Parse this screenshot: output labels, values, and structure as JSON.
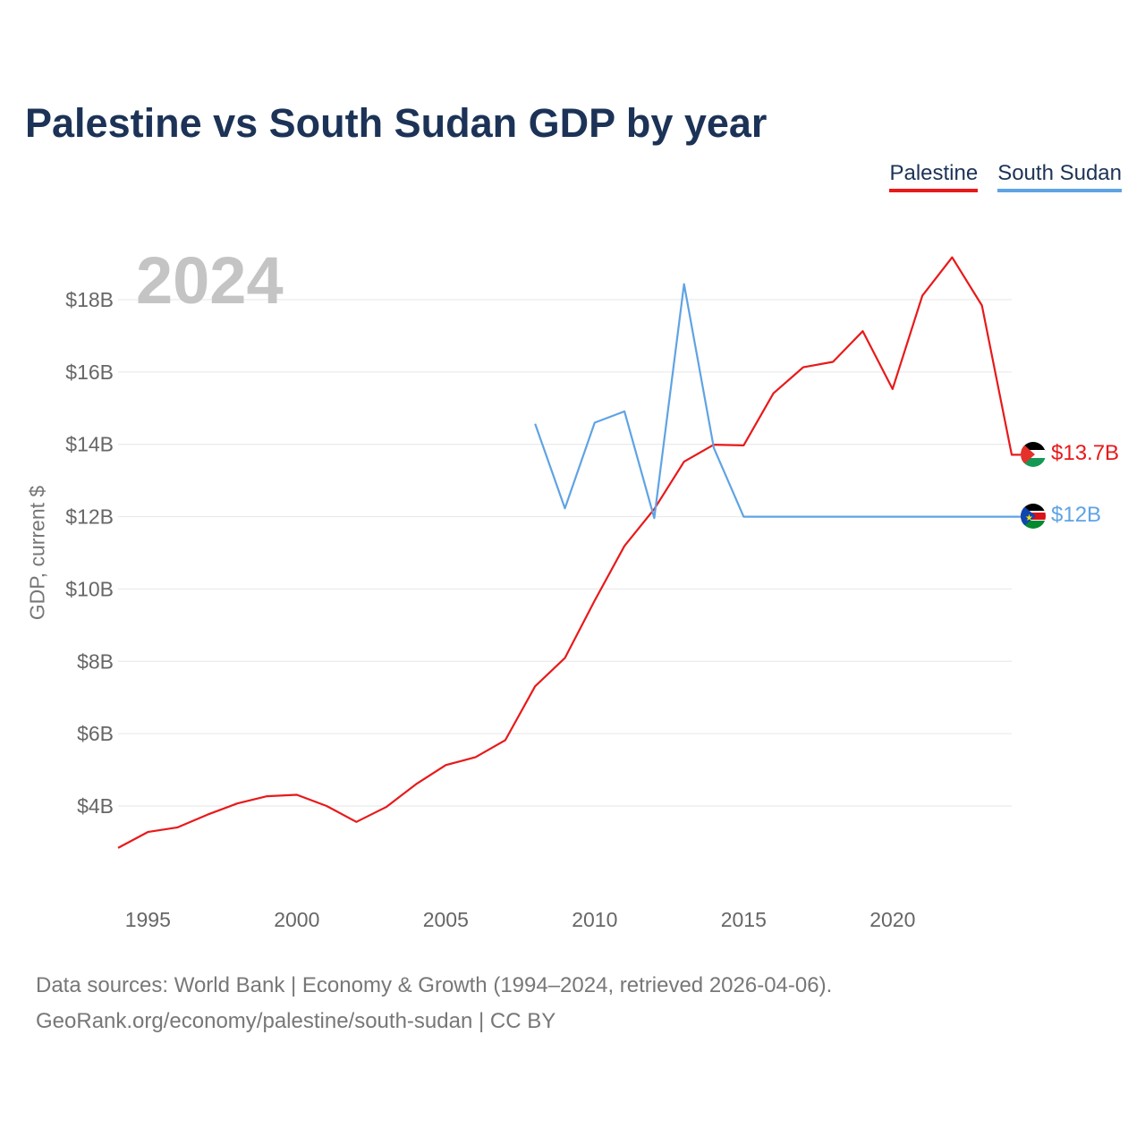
{
  "title": "Palestine vs South Sudan GDP by year",
  "legend": [
    {
      "label": "Palestine",
      "color": "#e8191a"
    },
    {
      "label": "South Sudan",
      "color": "#5fa3e4"
    }
  ],
  "year_label": "2024",
  "footer": {
    "line1": "Data sources: World Bank | Economy & Growth (1994–2024, retrieved 2026-04-06).",
    "line2": "GeoRank.org/economy/palestine/south-sudan | CC BY"
  },
  "chart_data": {
    "type": "line",
    "title": "Palestine vs South Sudan GDP by year",
    "xlabel": "",
    "ylabel": "GDP, current $",
    "xlim": [
      1994,
      2024
    ],
    "ylim": [
      2,
      20
    ],
    "y_ticks": [
      4,
      6,
      8,
      10,
      12,
      14,
      16,
      18
    ],
    "y_tick_labels": [
      "$4B",
      "$6B",
      "$8B",
      "$10B",
      "$12B",
      "$14B",
      "$16B",
      "$18B"
    ],
    "x_ticks": [
      1995,
      2000,
      2005,
      2010,
      2015,
      2020
    ],
    "x_tick_labels": [
      "1995",
      "2000",
      "2005",
      "2010",
      "2015",
      "2020"
    ],
    "grid": true,
    "units": "billion current US$",
    "series": [
      {
        "name": "Palestine",
        "color": "#e8191a",
        "flag": "palestine",
        "end_label": "$13.7B",
        "x": [
          1994,
          1995,
          1996,
          1997,
          1998,
          1999,
          2000,
          2001,
          2002,
          2003,
          2004,
          2005,
          2006,
          2007,
          2008,
          2009,
          2010,
          2011,
          2012,
          2013,
          2014,
          2015,
          2016,
          2017,
          2018,
          2019,
          2020,
          2021,
          2022,
          2023,
          2024
        ],
        "values": [
          2.84,
          3.28,
          3.41,
          3.76,
          4.07,
          4.27,
          4.31,
          4.0,
          3.56,
          3.97,
          4.6,
          5.13,
          5.35,
          5.82,
          7.31,
          8.09,
          9.68,
          11.19,
          12.21,
          13.52,
          13.99,
          13.97,
          15.41,
          16.13,
          16.28,
          17.13,
          15.53,
          18.11,
          19.17,
          17.84,
          13.71
        ]
      },
      {
        "name": "South Sudan",
        "color": "#5fa3e4",
        "flag": "south-sudan",
        "end_label": "$12B",
        "x": [
          2008,
          2009,
          2010,
          2011,
          2012,
          2013,
          2014,
          2015,
          2016,
          2017,
          2018,
          2019,
          2020,
          2021,
          2022,
          2023,
          2024
        ],
        "values": [
          14.57,
          12.23,
          14.6,
          14.91,
          11.96,
          18.43,
          13.9,
          12.0,
          12.0,
          12.0,
          12.0,
          12.0,
          12.0,
          12.0,
          12.0,
          12.0,
          12.0
        ]
      }
    ]
  }
}
